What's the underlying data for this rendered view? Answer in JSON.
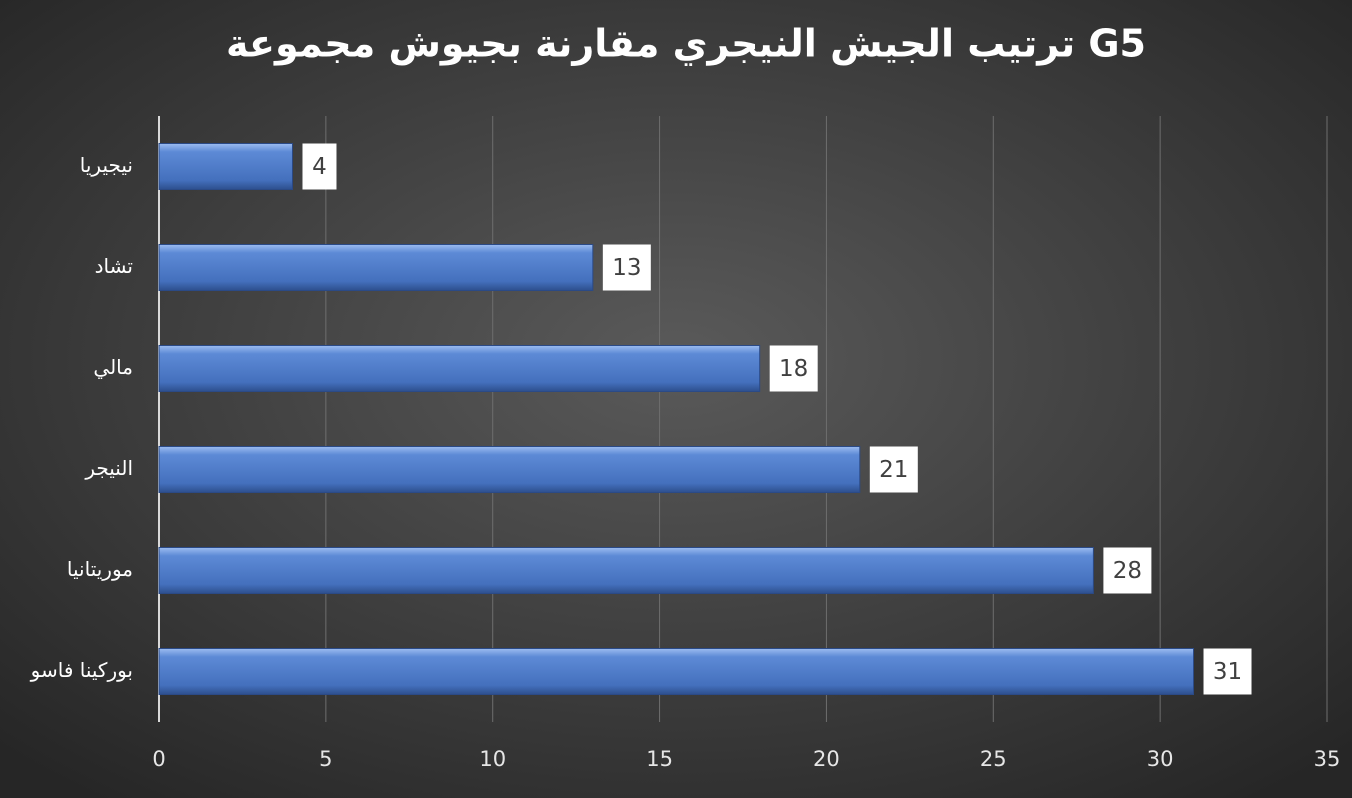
{
  "chart_data": {
    "type": "barh",
    "title": "ترتيب الجيش النيجري مقارنة بجيوش مجموعة G5",
    "categories": [
      "نيجيريا",
      "تشاد",
      "مالي",
      "النيجر",
      "موريتانيا",
      "بوركينا فاسو"
    ],
    "values": [
      4,
      13,
      18,
      21,
      28,
      31
    ],
    "color": "#4a78c8",
    "xlim": [
      0,
      35
    ],
    "xticks": [
      0,
      5,
      10,
      15,
      20,
      25,
      30,
      35
    ],
    "grid": true
  }
}
